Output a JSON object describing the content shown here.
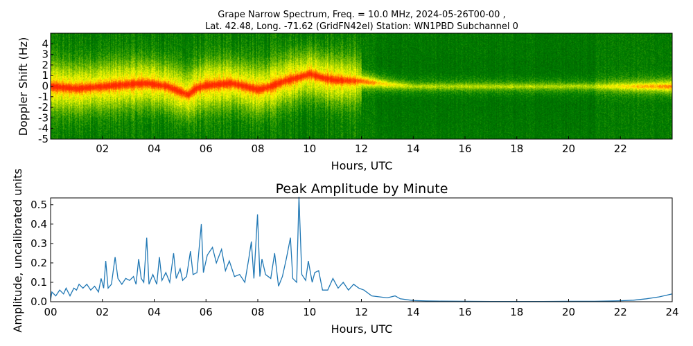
{
  "chart_data": [
    {
      "type": "heatmap",
      "title_line1": "Grape Narrow Spectrum, Freq. = 10.0 MHz, 2024-05-26T00-00 ,",
      "title_line2": "Lat.  42.48, Long. -71.62 (GridFN42el) Station: WN1PBD Subchannel 0",
      "xlabel": "Hours, UTC",
      "ylabel": "Doppler Shift (Hz)",
      "xlim": [
        0,
        24
      ],
      "ylim": [
        -5,
        5
      ],
      "xticks": [
        2,
        4,
        6,
        8,
        10,
        12,
        14,
        16,
        18,
        20,
        22
      ],
      "xtick_labels": [
        "02",
        "04",
        "06",
        "08",
        "10",
        "12",
        "14",
        "16",
        "18",
        "20",
        "22"
      ],
      "yticks": [
        -5,
        -4,
        -3,
        -2,
        -1,
        0,
        1,
        2,
        3,
        4
      ],
      "ytick_labels": [
        "-5",
        "-4",
        "-3",
        "-2",
        "-1",
        "0",
        "1",
        "2",
        "3",
        "4"
      ],
      "colormap": [
        "#006400",
        "#008000",
        "#ffff00",
        "#ff0000"
      ],
      "doppler_trace": {
        "hours": [
          0,
          1,
          2,
          3,
          3.7,
          4.5,
          5,
          5.3,
          5.6,
          6,
          7,
          7.5,
          8,
          8.5,
          9,
          9.5,
          10,
          10.5,
          11,
          12,
          13,
          14,
          24
        ],
        "hz": [
          0,
          -0.2,
          0,
          0.2,
          0.3,
          0,
          -0.5,
          -0.8,
          -0.2,
          0.1,
          0.3,
          0,
          -0.3,
          0,
          0.5,
          0.8,
          1.2,
          0.8,
          0.6,
          0.5,
          0.2,
          0,
          0
        ]
      }
    },
    {
      "type": "line",
      "title": "Peak Amplitude by Minute",
      "xlabel": "Hours, UTC",
      "ylabel": "Amplitude, uncalibrated units",
      "xlim": [
        0,
        24
      ],
      "ylim": [
        0,
        0.535
      ],
      "xticks": [
        0,
        2,
        4,
        6,
        8,
        10,
        12,
        14,
        16,
        18,
        20,
        22,
        24
      ],
      "xtick_labels": [
        "00",
        "02",
        "04",
        "06",
        "08",
        "10",
        "12",
        "14",
        "16",
        "18",
        "20",
        "22",
        "24"
      ],
      "yticks": [
        0,
        0.1,
        0.2,
        0.3,
        0.4,
        0.5
      ],
      "ytick_labels": [
        "0.0",
        "0.1",
        "0.2",
        "0.3",
        "0.4",
        "0.5"
      ],
      "color": "#1f77b4",
      "x": [
        0,
        0.05,
        0.2,
        0.35,
        0.5,
        0.6,
        0.75,
        0.9,
        1.0,
        1.1,
        1.25,
        1.4,
        1.55,
        1.7,
        1.85,
        1.95,
        2.05,
        2.13,
        2.22,
        2.35,
        2.49,
        2.6,
        2.75,
        2.9,
        3.05,
        3.2,
        3.3,
        3.4,
        3.5,
        3.6,
        3.71,
        3.8,
        3.95,
        4.1,
        4.2,
        4.3,
        4.45,
        4.6,
        4.75,
        4.85,
        5.0,
        5.1,
        5.25,
        5.4,
        5.5,
        5.65,
        5.82,
        5.9,
        6.05,
        6.25,
        6.4,
        6.6,
        6.75,
        6.9,
        7.1,
        7.3,
        7.5,
        7.65,
        7.75,
        7.85,
        7.99,
        8.08,
        8.16,
        8.3,
        8.5,
        8.65,
        8.8,
        8.95,
        9.1,
        9.26,
        9.35,
        9.5,
        9.59,
        9.7,
        9.85,
        9.95,
        10.1,
        10.2,
        10.35,
        10.5,
        10.7,
        10.9,
        11.1,
        11.3,
        11.5,
        11.7,
        11.9,
        12.1,
        12.4,
        12.7,
        13.0,
        13.3,
        13.5,
        14.0,
        14.5,
        15.0,
        16.0,
        17.0,
        18.0,
        19.0,
        20.0,
        21.0,
        22.0,
        22.5,
        23.0,
        23.5,
        24.0
      ],
      "y": [
        0.01,
        0.05,
        0.03,
        0.06,
        0.04,
        0.07,
        0.03,
        0.07,
        0.06,
        0.09,
        0.07,
        0.09,
        0.06,
        0.08,
        0.05,
        0.12,
        0.07,
        0.21,
        0.07,
        0.09,
        0.23,
        0.12,
        0.09,
        0.12,
        0.11,
        0.13,
        0.09,
        0.22,
        0.12,
        0.1,
        0.33,
        0.09,
        0.14,
        0.09,
        0.23,
        0.11,
        0.15,
        0.1,
        0.25,
        0.12,
        0.17,
        0.11,
        0.13,
        0.26,
        0.14,
        0.15,
        0.4,
        0.15,
        0.24,
        0.28,
        0.2,
        0.27,
        0.16,
        0.21,
        0.13,
        0.14,
        0.1,
        0.22,
        0.31,
        0.12,
        0.45,
        0.13,
        0.22,
        0.14,
        0.12,
        0.25,
        0.08,
        0.13,
        0.22,
        0.33,
        0.12,
        0.1,
        0.54,
        0.14,
        0.11,
        0.21,
        0.1,
        0.15,
        0.16,
        0.06,
        0.06,
        0.12,
        0.07,
        0.1,
        0.06,
        0.09,
        0.07,
        0.06,
        0.03,
        0.025,
        0.02,
        0.03,
        0.015,
        0.006,
        0.004,
        0.003,
        0.002,
        0.001,
        0.001,
        0.001,
        0.002,
        0.002,
        0.005,
        0.008,
        0.015,
        0.025,
        0.04
      ]
    }
  ]
}
